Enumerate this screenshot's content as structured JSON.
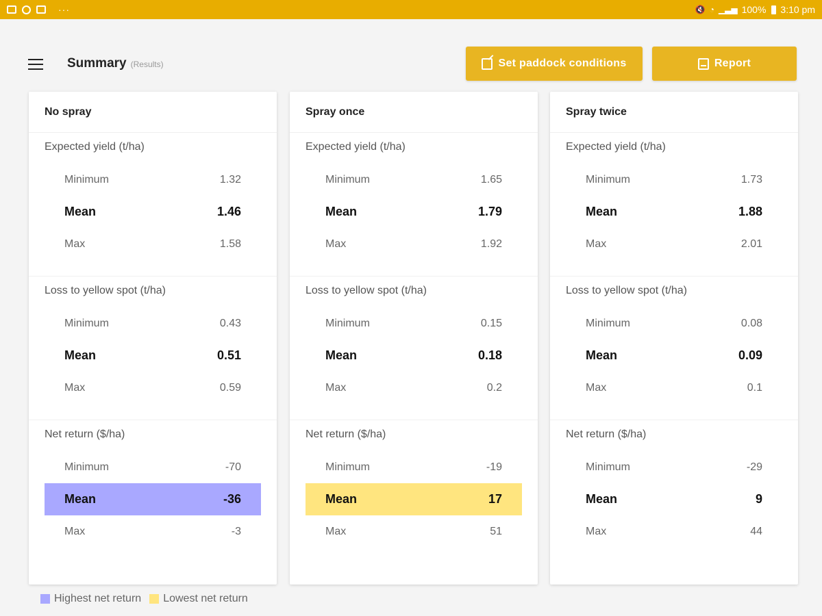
{
  "status_bar": {
    "battery": "100%",
    "time": "3:10 pm",
    "overflow": "···"
  },
  "header": {
    "title": "Summary",
    "subtitle": "(Results)",
    "buttons": {
      "conditions_label": "Set paddock conditions",
      "report_label": "Report"
    }
  },
  "colors": {
    "accent": "#e8b522",
    "status_bar": "#e8ad00",
    "highest_net_return": "#a9a8ff",
    "lowest_net_return": "#ffe57f"
  },
  "labels": {
    "minimum": "Minimum",
    "mean": "Mean",
    "max": "Max"
  },
  "cards": [
    {
      "title": "No spray",
      "sections": [
        {
          "title": "Expected yield (t/ha)",
          "min": "1.32",
          "mean": "1.46",
          "max": "1.58"
        },
        {
          "title": "Loss to yellow spot (t/ha)",
          "min": "0.43",
          "mean": "0.51",
          "max": "0.59"
        },
        {
          "title": "Net return ($/ha)",
          "min": "-70",
          "mean": "-36",
          "max": "-3"
        }
      ]
    },
    {
      "title": "Spray once",
      "sections": [
        {
          "title": "Expected yield (t/ha)",
          "min": "1.65",
          "mean": "1.79",
          "max": "1.92"
        },
        {
          "title": "Loss to yellow spot (t/ha)",
          "min": "0.15",
          "mean": "0.18",
          "max": "0.2"
        },
        {
          "title": "Net return ($/ha)",
          "min": "-19",
          "mean": "17",
          "max": "51"
        }
      ]
    },
    {
      "title": "Spray twice",
      "sections": [
        {
          "title": "Expected yield (t/ha)",
          "min": "1.73",
          "mean": "1.88",
          "max": "2.01"
        },
        {
          "title": "Loss to yellow spot (t/ha)",
          "min": "0.08",
          "mean": "0.09",
          "max": "0.1"
        },
        {
          "title": "Net return ($/ha)",
          "min": "-29",
          "mean": "9",
          "max": "44"
        }
      ]
    }
  ],
  "legend": {
    "highest": "Highest net return",
    "lowest": "Lowest net return"
  }
}
